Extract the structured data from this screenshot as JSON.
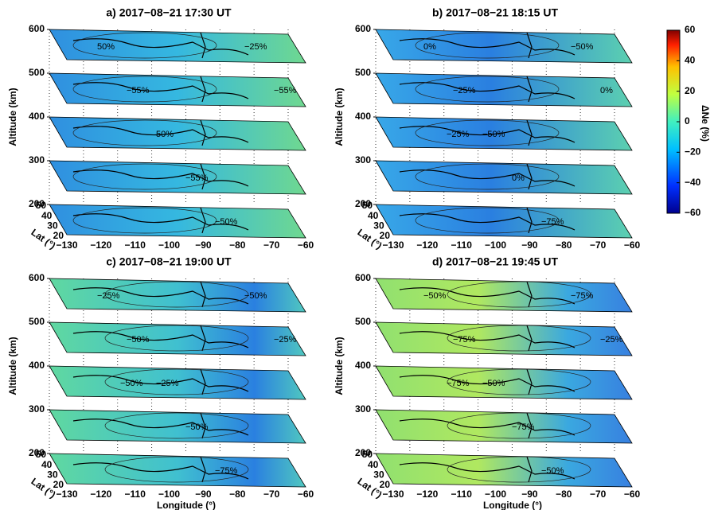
{
  "chart_data": [
    {
      "type": "slices",
      "title": "a) 2017−08−21 17:30 UT",
      "ylabel": "Altitude (km)",
      "ylim": [
        200,
        600
      ],
      "yticks": [
        200,
        300,
        400,
        500,
        600
      ],
      "lat_label": "Lat (°)",
      "lat_ticks": [
        20,
        30,
        40,
        50
      ],
      "xlim": [
        -130,
        -60
      ],
      "xticks": [
        {
          "value": -130,
          "label": "−130"
        },
        {
          "value": -120,
          "label": "−120"
        },
        {
          "value": -110,
          "label": "−110"
        },
        {
          "value": -100,
          "label": "−100"
        },
        {
          "value": -90,
          "label": "−90"
        },
        {
          "value": -80,
          "label": "−80"
        },
        {
          "value": -70,
          "label": "−70"
        },
        {
          "value": -60,
          "label": "−60"
        }
      ],
      "contour_labels": [
        "50%",
        "−55%",
        "50%",
        "−55%",
        "−50%",
        "−25%",
        "−55%"
      ]
    },
    {
      "type": "slices",
      "title": "b) 2017−08−21 18:15 UT",
      "ylabel": "Altitude (km)",
      "ylim": [
        200,
        600
      ],
      "yticks": [
        200,
        300,
        400,
        500,
        600
      ],
      "lat_label": "Lat (°)",
      "lat_ticks": [
        20,
        30,
        40,
        50
      ],
      "xlim": [
        -130,
        -60
      ],
      "xticks": [
        {
          "value": -130,
          "label": "−130"
        },
        {
          "value": -120,
          "label": "−120"
        },
        {
          "value": -110,
          "label": "−110"
        },
        {
          "value": -100,
          "label": "−100"
        },
        {
          "value": -90,
          "label": "−90"
        },
        {
          "value": -80,
          "label": "−80"
        },
        {
          "value": -70,
          "label": "−70"
        },
        {
          "value": -60,
          "label": "−60"
        }
      ],
      "contour_labels": [
        "0%",
        "−25%",
        "−50%",
        "0%",
        "−75%",
        "−50%",
        "0%",
        "−25%"
      ]
    },
    {
      "type": "slices",
      "title": "c) 2017−08−21 19:00 UT",
      "ylabel": "Altitude (km)",
      "ylim": [
        200,
        600
      ],
      "yticks": [
        200,
        300,
        400,
        500,
        600
      ],
      "lat_label": "Lat (°)",
      "lat_ticks": [
        20,
        30,
        40,
        50
      ],
      "xlim": [
        -130,
        -60
      ],
      "xticks": [
        {
          "value": -130,
          "label": "−130"
        },
        {
          "value": -120,
          "label": "−120"
        },
        {
          "value": -110,
          "label": "−110"
        },
        {
          "value": -100,
          "label": "−100"
        },
        {
          "value": -90,
          "label": "−90"
        },
        {
          "value": -80,
          "label": "−80"
        },
        {
          "value": -70,
          "label": "−70"
        },
        {
          "value": -60,
          "label": "−60"
        }
      ],
      "xlabel": "Longitude (°)",
      "contour_labels": [
        "−25%",
        "−50%",
        "−25%",
        "−50%",
        "−75%",
        "−50%",
        "−25%",
        "−50%"
      ]
    },
    {
      "type": "slices",
      "title": "d) 2017−08−21 19:45 UT",
      "ylabel": "Altitude (km)",
      "ylim": [
        200,
        600
      ],
      "yticks": [
        200,
        300,
        400,
        500,
        600
      ],
      "lat_label": "Lat (°)",
      "lat_ticks": [
        20,
        30,
        40,
        50
      ],
      "xlim": [
        -130,
        -60
      ],
      "xticks": [
        {
          "value": -130,
          "label": "−130"
        },
        {
          "value": -120,
          "label": "−120"
        },
        {
          "value": -110,
          "label": "−110"
        },
        {
          "value": -100,
          "label": "−100"
        },
        {
          "value": -90,
          "label": "−90"
        },
        {
          "value": -80,
          "label": "−80"
        },
        {
          "value": -70,
          "label": "−70"
        },
        {
          "value": -60,
          "label": "−60"
        }
      ],
      "xlabel": "Longitude (°)",
      "contour_labels": [
        "−50%",
        "−75%",
        "−50%",
        "−75%",
        "−50%",
        "−75%",
        "−25%",
        "−75%"
      ]
    }
  ],
  "colorbar": {
    "label": "ΔNe (%)",
    "lim": [
      -60,
      60
    ],
    "ticks": [
      {
        "value": -60,
        "label": "−60"
      },
      {
        "value": -40,
        "label": "−40"
      },
      {
        "value": -20,
        "label": "−20"
      },
      0,
      20,
      40,
      60
    ]
  }
}
